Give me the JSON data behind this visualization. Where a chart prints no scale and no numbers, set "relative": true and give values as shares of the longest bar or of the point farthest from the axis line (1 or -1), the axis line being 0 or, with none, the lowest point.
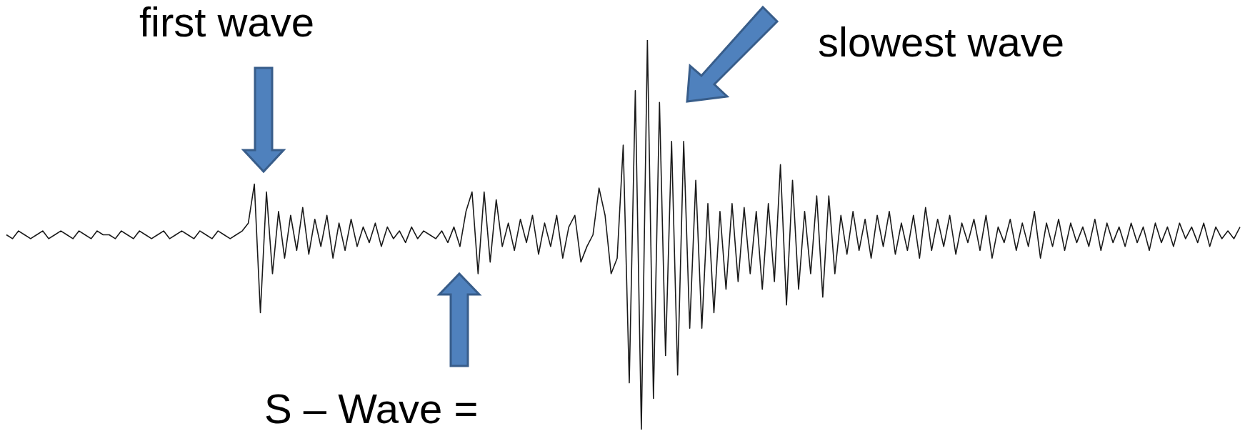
{
  "chart_data": {
    "type": "line",
    "relative": true,
    "marker": "none",
    "tick_labels": false,
    "annotations": [
      "first wave",
      "slowest wave",
      "S – Wave ="
    ],
    "categories": [
      null,
      null,
      null,
      null,
      null,
      null,
      null,
      null,
      null,
      null,
      null,
      null,
      null,
      null,
      null,
      null,
      null,
      null,
      null,
      null,
      null,
      null,
      null,
      null,
      null,
      null,
      null,
      null,
      null,
      null,
      null,
      null,
      null,
      null,
      null,
      null,
      null,
      null,
      null,
      null,
      null,
      null,
      null,
      null,
      null,
      null,
      null,
      null,
      null,
      null,
      null,
      null,
      null,
      null,
      null,
      null,
      null,
      null,
      null,
      null,
      null,
      null,
      null,
      null,
      null,
      null,
      null,
      null,
      null,
      null,
      null,
      null,
      null,
      null,
      null,
      null,
      null,
      null,
      null,
      null,
      null,
      null,
      null,
      null,
      null,
      null,
      null,
      null,
      null,
      null,
      null,
      null,
      null,
      null,
      null,
      null,
      null,
      null,
      null,
      null,
      null,
      null,
      null,
      null,
      null,
      null,
      null,
      null,
      null,
      null,
      null,
      null,
      null,
      null,
      null,
      null,
      null,
      null,
      null,
      null,
      null,
      null,
      null,
      null,
      null,
      null,
      null,
      null,
      null,
      null,
      null,
      null,
      null,
      null,
      null,
      null,
      null,
      null,
      null,
      null,
      null,
      null,
      null,
      null,
      null,
      null,
      null,
      null,
      null,
      null,
      null,
      null,
      null,
      null,
      null,
      null,
      null,
      null,
      null,
      null,
      null,
      null,
      null,
      null,
      null,
      null,
      null,
      null,
      null,
      null,
      null,
      null,
      null,
      null,
      null,
      null,
      null,
      null,
      null,
      null,
      null,
      null,
      null,
      null,
      null,
      null,
      null,
      null,
      null,
      null,
      null,
      null,
      null,
      null,
      null,
      null,
      null,
      null,
      null,
      null,
      null,
      null,
      null,
      null,
      null
    ],
    "series": [
      {
        "color": "#1a1a1a",
        "values": [
          0.5,
          0.49,
          0.51,
          0.5,
          0.49,
          0.5,
          0.51,
          0.49,
          0.5,
          0.51,
          0.5,
          0.49,
          0.51,
          0.5,
          0.49,
          0.51,
          0.5,
          0.5,
          0.49,
          0.51,
          0.5,
          0.49,
          0.51,
          0.5,
          0.49,
          0.5,
          0.51,
          0.49,
          0.5,
          0.51,
          0.5,
          0.49,
          0.51,
          0.5,
          0.49,
          0.51,
          0.5,
          0.49,
          0.5,
          0.51,
          0.53,
          0.63,
          0.3,
          0.61,
          0.4,
          0.56,
          0.44,
          0.55,
          0.46,
          0.57,
          0.45,
          0.54,
          0.47,
          0.55,
          0.44,
          0.53,
          0.46,
          0.54,
          0.47,
          0.52,
          0.48,
          0.53,
          0.47,
          0.52,
          0.49,
          0.51,
          0.48,
          0.52,
          0.49,
          0.51,
          0.5,
          0.49,
          0.51,
          0.48,
          0.52,
          0.47,
          0.56,
          0.61,
          0.4,
          0.61,
          0.43,
          0.59,
          0.47,
          0.53,
          0.46,
          0.54,
          0.48,
          0.55,
          0.45,
          0.53,
          0.47,
          0.55,
          0.44,
          0.52,
          0.55,
          0.43,
          0.47,
          0.5,
          0.62,
          0.55,
          0.4,
          0.44,
          0.73,
          0.12,
          0.87,
          0.0,
          1.0,
          0.08,
          0.84,
          0.19,
          0.74,
          0.14,
          0.74,
          0.26,
          0.64,
          0.26,
          0.58,
          0.3,
          0.56,
          0.36,
          0.58,
          0.38,
          0.57,
          0.4,
          0.56,
          0.36,
          0.58,
          0.38,
          0.68,
          0.32,
          0.64,
          0.36,
          0.56,
          0.4,
          0.6,
          0.34,
          0.6,
          0.4,
          0.55,
          0.45,
          0.56,
          0.46,
          0.54,
          0.44,
          0.55,
          0.47,
          0.56,
          0.45,
          0.53,
          0.46,
          0.55,
          0.44,
          0.57,
          0.46,
          0.54,
          0.47,
          0.55,
          0.45,
          0.53,
          0.48,
          0.54,
          0.46,
          0.55,
          0.44,
          0.52,
          0.48,
          0.54,
          0.46,
          0.53,
          0.47,
          0.56,
          0.44,
          0.53,
          0.47,
          0.54,
          0.46,
          0.53,
          0.48,
          0.52,
          0.47,
          0.54,
          0.46,
          0.53,
          0.48,
          0.52,
          0.47,
          0.53,
          0.48,
          0.52,
          0.46,
          0.53,
          0.48,
          0.52,
          0.47,
          0.53,
          0.49,
          0.52,
          0.48,
          0.53,
          0.47,
          0.52,
          0.49,
          0.51,
          0.49,
          0.52
        ]
      }
    ]
  }
}
